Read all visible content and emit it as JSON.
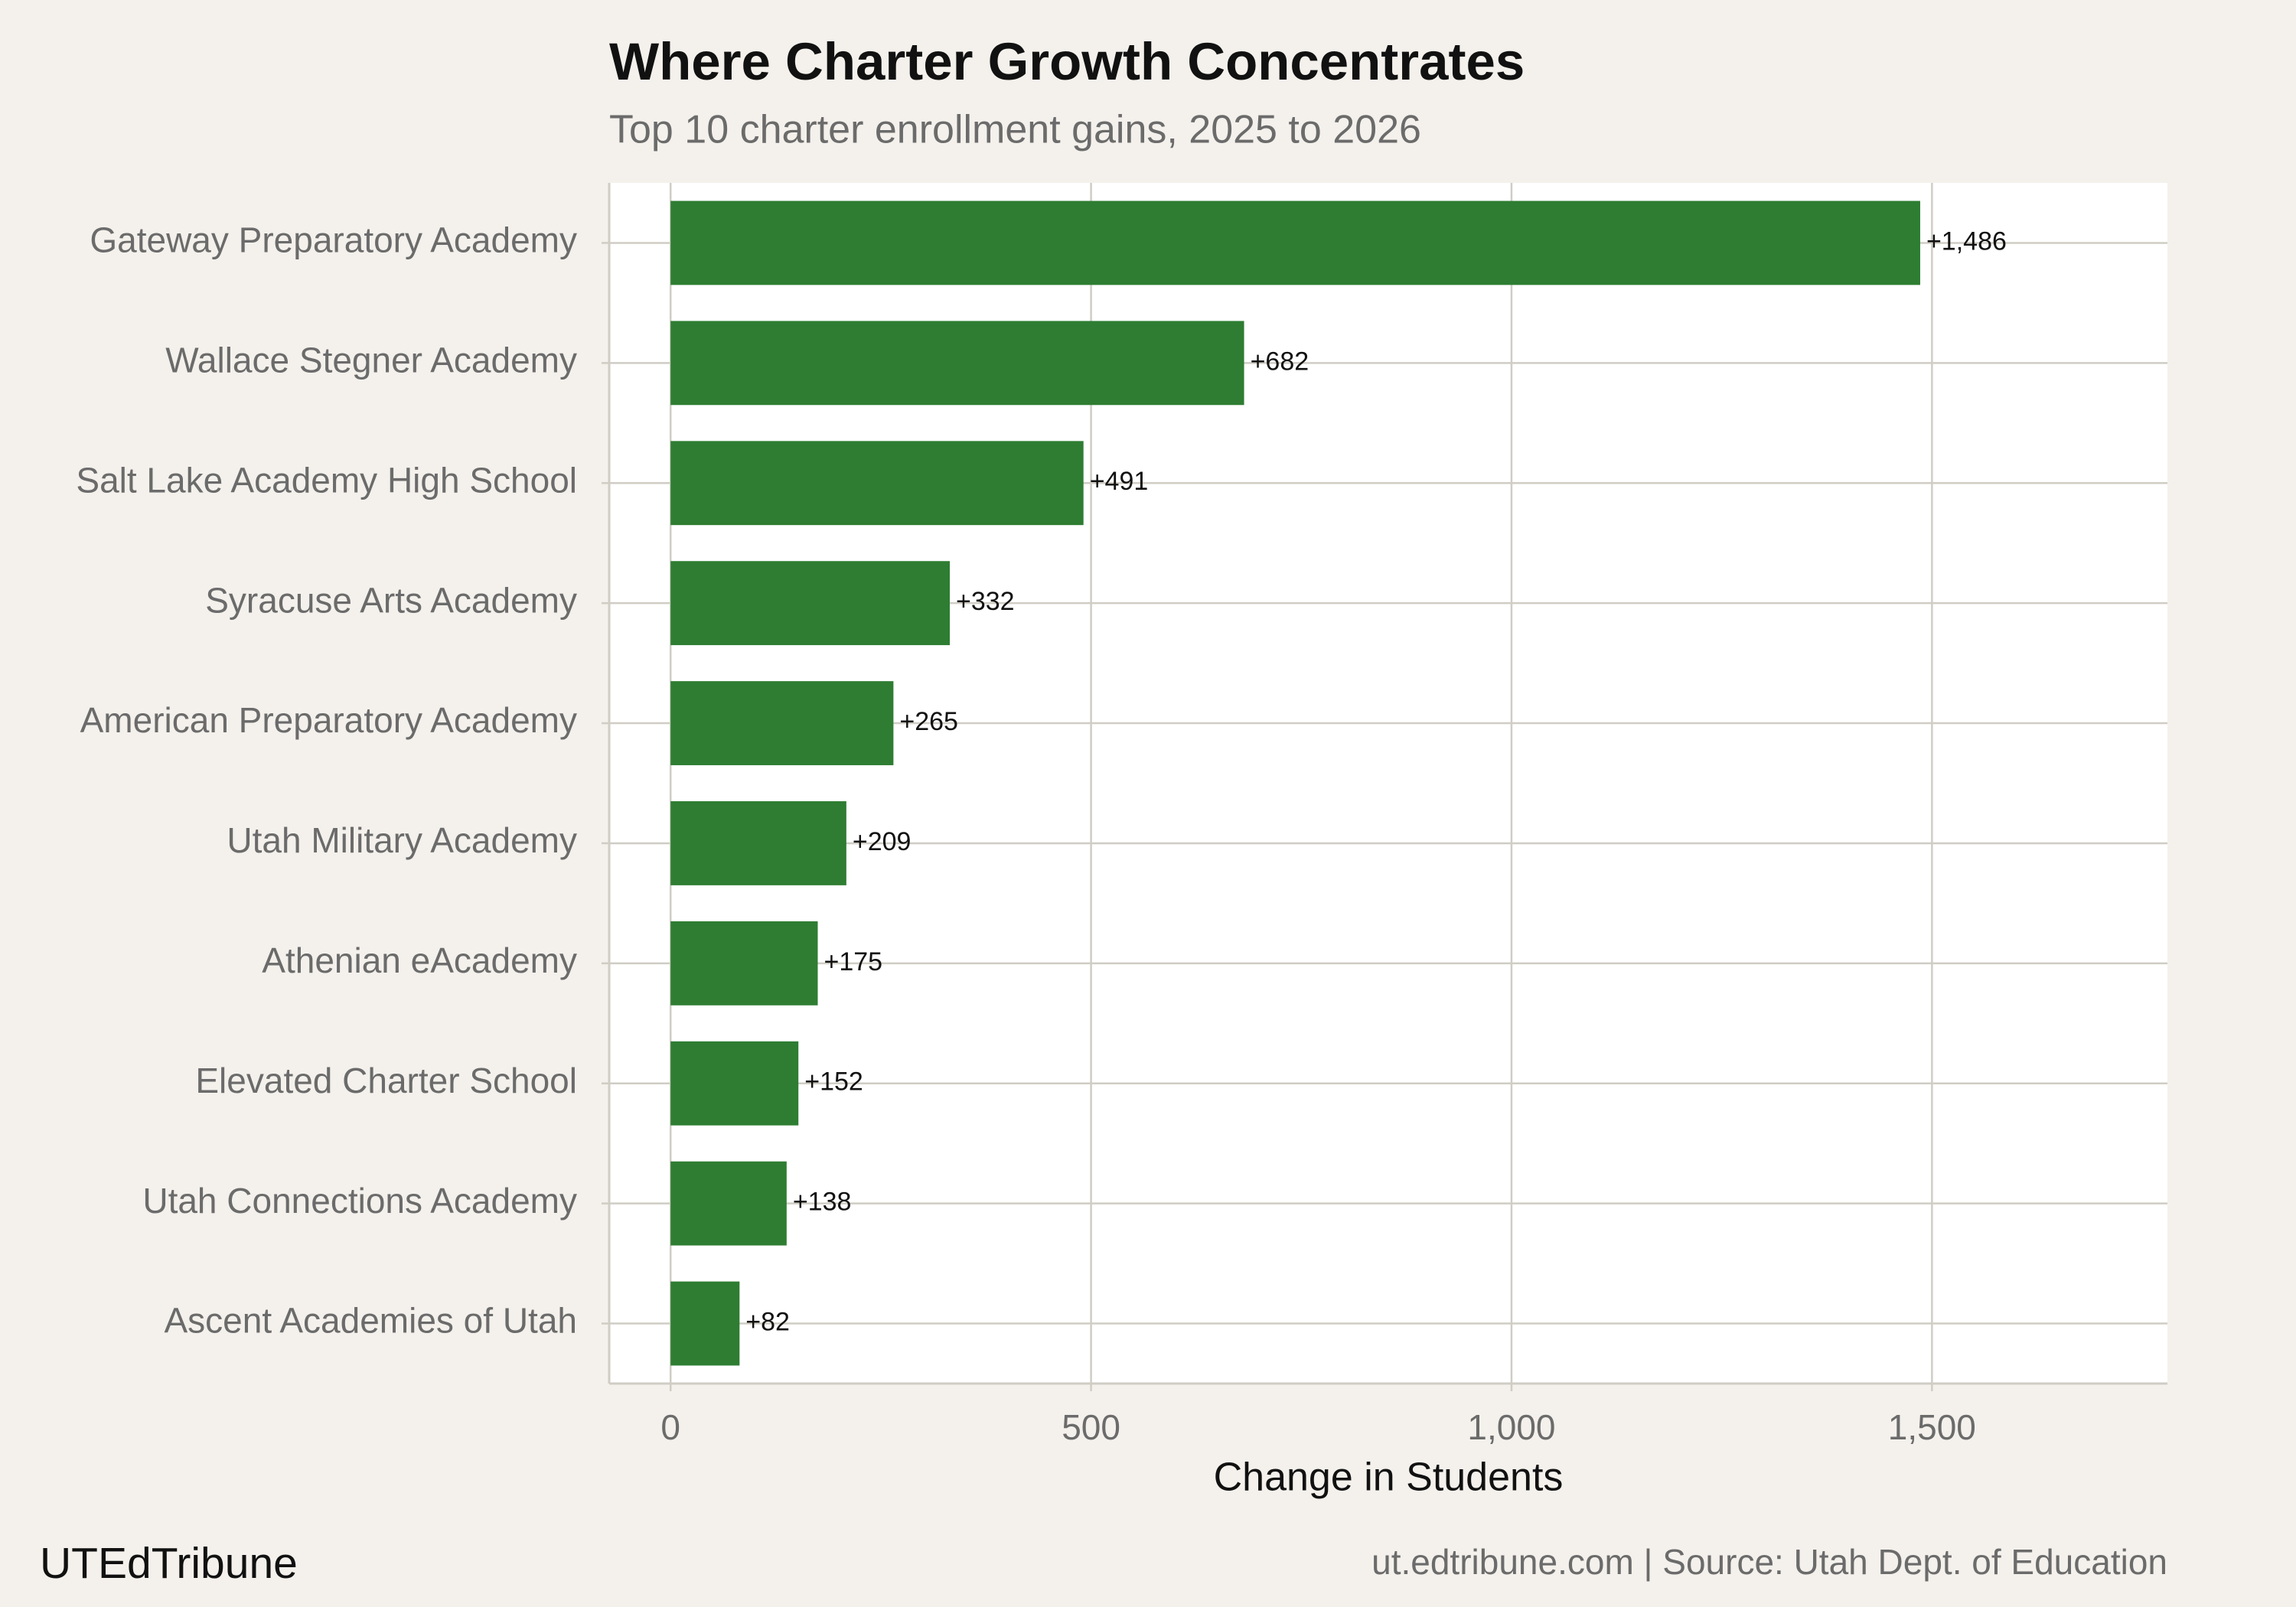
{
  "chart_data": {
    "type": "bar",
    "orientation": "horizontal",
    "title": "Where Charter Growth Concentrates",
    "subtitle": "Top 10 charter enrollment gains, 2025 to 2026",
    "x_label": "Change in Students",
    "categories": [
      "Gateway Preparatory Academy",
      "Wallace Stegner Academy",
      "Salt Lake Academy High School",
      "Syracuse Arts Academy",
      "American Preparatory Academy",
      "Utah Military Academy",
      "Athenian eAcademy",
      "Elevated Charter School",
      "Utah Connections Academy",
      "Ascent Academies of Utah"
    ],
    "values": [
      1486,
      682,
      491,
      332,
      265,
      209,
      175,
      152,
      138,
      82
    ],
    "value_labels": [
      "+1,486",
      "+682",
      "+491",
      "+332",
      "+265",
      "+209",
      "+175",
      "+152",
      "+138",
      "+82"
    ],
    "color": "#2e7d32",
    "xlim": [
      -73,
      1780
    ],
    "xticks": [
      0,
      500,
      {
        "value": 1000,
        "label": "1,000"
      },
      {
        "value": 1500,
        "label": "1,500"
      }
    ],
    "grid": true,
    "brand": "UTEdTribune",
    "caption": "ut.edtribune.com | Source: Utah Dept. of Education"
  }
}
